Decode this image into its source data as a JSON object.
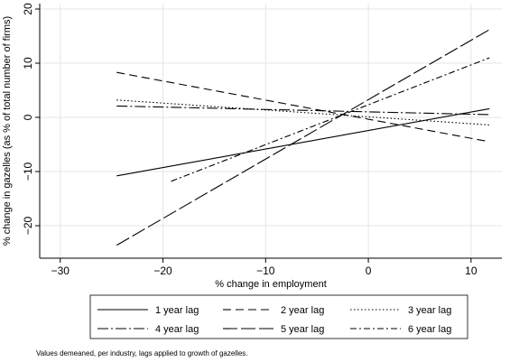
{
  "chart_data": {
    "type": "line",
    "title": "",
    "xlabel": "% change in employment",
    "ylabel": "% change in gazelles (as % of total number of firms)",
    "xlim": [
      -32,
      13
    ],
    "ylim": [
      -26,
      21
    ],
    "xticks": [
      -30,
      -20,
      -10,
      0,
      10
    ],
    "xtick_labels": [
      "−30",
      "−20",
      "−10",
      "0",
      "10"
    ],
    "yticks": [
      -20,
      -10,
      0,
      10,
      20
    ],
    "ytick_labels": [
      "−20",
      "−10",
      "0",
      "10",
      "20"
    ],
    "grid": true,
    "legend_position": "bottom",
    "note": "Values demeaned, per industry, lags applied to growth of gazelles.",
    "series": [
      {
        "name": "1 year lag",
        "dash": "solid",
        "x": [
          -24.5,
          11.8
        ],
        "y": [
          -10.8,
          1.6
        ]
      },
      {
        "name": "2 year lag",
        "dash": "long-dash",
        "x": [
          -24.5,
          11.8
        ],
        "y": [
          8.3,
          -4.5
        ]
      },
      {
        "name": "3 year lag",
        "dash": "dot",
        "x": [
          -24.5,
          11.8
        ],
        "y": [
          3.2,
          -1.4
        ]
      },
      {
        "name": "4 year lag",
        "dash": "dash-dot",
        "x": [
          -24.5,
          11.8
        ],
        "y": [
          2.1,
          0.5
        ]
      },
      {
        "name": "5 year lag",
        "dash": "long-long-dash",
        "x": [
          -24.5,
          11.8
        ],
        "y": [
          -23.6,
          16.2
        ]
      },
      {
        "name": "6 year lag",
        "dash": "short-dash-dot",
        "x": [
          -19.2,
          11.8
        ],
        "y": [
          -11.8,
          11.0
        ]
      }
    ]
  }
}
